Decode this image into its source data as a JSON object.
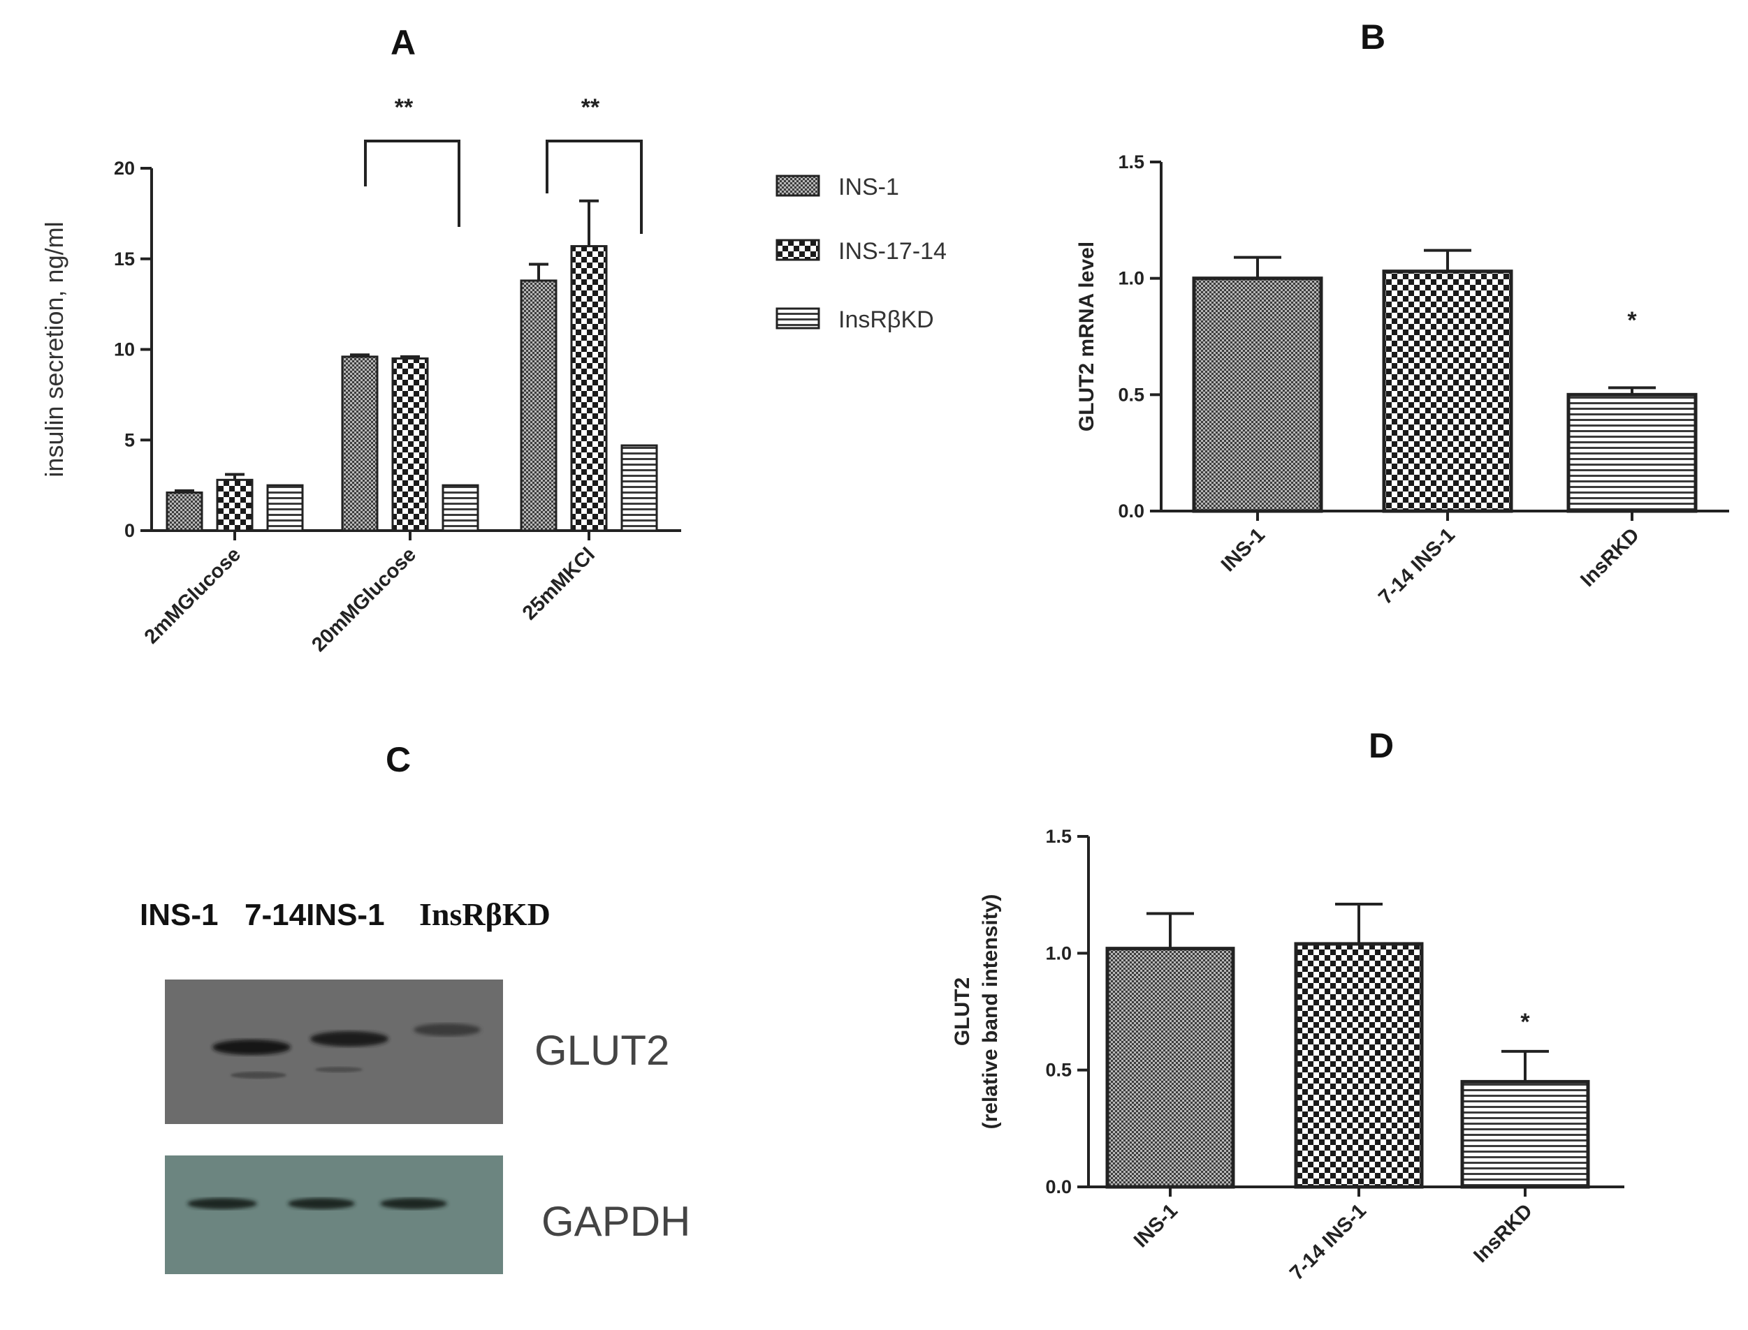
{
  "panels": {
    "A": {
      "letter": "A",
      "legend": [
        "INS-1",
        "INS-17-14",
        "InsRβKD"
      ],
      "significance": [
        "**",
        "**"
      ]
    },
    "B": {
      "letter": "B",
      "significance": [
        "*"
      ]
    },
    "C": {
      "letter": "C",
      "lane_labels": [
        "INS-1",
        "7-14INS-1",
        "InsRβKD"
      ],
      "blot_labels": [
        "GLUT2",
        "GAPDH"
      ]
    },
    "D": {
      "letter": "D",
      "significance": [
        "*"
      ]
    }
  },
  "colors": {
    "blot_glut2_bg": "#6f6f6f",
    "blot_gapdh_bg": "#6c8580",
    "axis": "#222222"
  },
  "chart_data": [
    {
      "panel": "A",
      "type": "bar",
      "title": "",
      "xlabel": "",
      "ylabel": "insulin secretion, ng/ml",
      "categories": [
        "2mMGlucose",
        "20mMGlucose",
        "25mMKCl"
      ],
      "ylim": [
        0,
        20
      ],
      "yticks": [
        0,
        5,
        10,
        15,
        20
      ],
      "series": [
        {
          "name": "INS-1",
          "pattern": "fine",
          "values": [
            2.1,
            9.6,
            13.8
          ],
          "errors": [
            0.1,
            0.1,
            0.9
          ]
        },
        {
          "name": "INS-17-14",
          "pattern": "check",
          "values": [
            2.8,
            9.5,
            15.7
          ],
          "errors": [
            0.3,
            0.1,
            2.5
          ]
        },
        {
          "name": "InsRβKD",
          "pattern": "hlines",
          "values": [
            2.5,
            2.5,
            4.7
          ],
          "errors": [
            0,
            0,
            0
          ]
        }
      ],
      "legend_position": "right"
    },
    {
      "panel": "B",
      "type": "bar",
      "title": "",
      "xlabel": "",
      "ylabel": "GLUT2 mRNA level",
      "categories": [
        "INS-1",
        "7-14 INS-1",
        "InsRKD"
      ],
      "values": [
        1.0,
        1.03,
        0.5
      ],
      "errors": [
        0.09,
        0.09,
        0.03
      ],
      "patterns": [
        "fine",
        "check",
        "hlines"
      ],
      "ylim": [
        0,
        1.5
      ],
      "yticks": [
        "0.0",
        "0.5",
        "1.0",
        "1.5"
      ]
    },
    {
      "panel": "D",
      "type": "bar",
      "title": "",
      "xlabel": "",
      "ylabel": "GLUT2",
      "ylabel2": "(relative band intensity)",
      "categories": [
        "INS-1",
        "7-14 INS-1",
        "InsRKD"
      ],
      "values": [
        1.02,
        1.04,
        0.45
      ],
      "errors": [
        0.15,
        0.17,
        0.13
      ],
      "patterns": [
        "fine",
        "check",
        "hlines"
      ],
      "ylim": [
        0,
        1.5
      ],
      "yticks": [
        "0.0",
        "0.5",
        "1.0",
        "1.5"
      ]
    }
  ]
}
